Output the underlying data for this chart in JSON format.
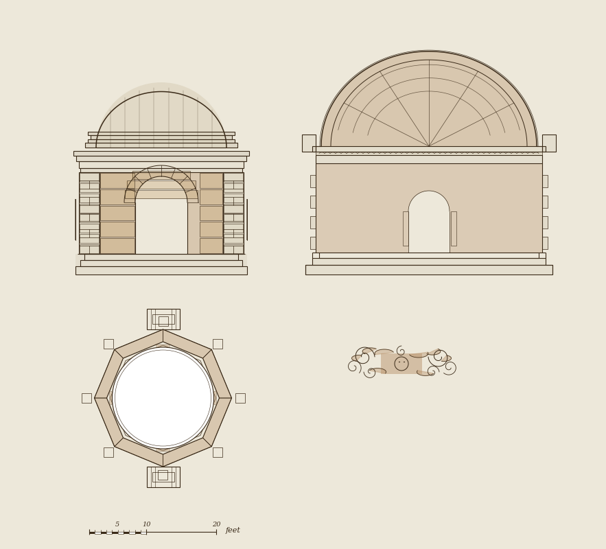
{
  "paper_color": "#ede8da",
  "line_color": "#3a2a18",
  "wash_color": "#b8926a",
  "wash_alpha": 0.38,
  "wash_alpha2": 0.28,
  "figsize": [
    8.83,
    8.0
  ],
  "dpi": 100,
  "scale_label_5": "5",
  "scale_label_10": "10",
  "scale_label_20": "20",
  "scale_label_feet": "feet"
}
